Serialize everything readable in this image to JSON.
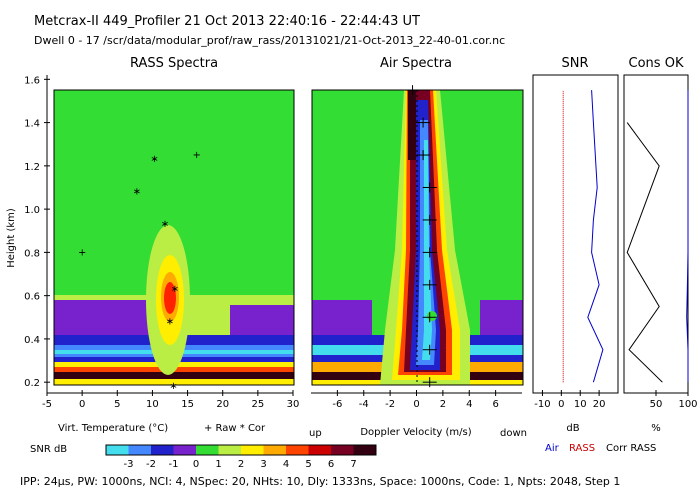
{
  "header": {
    "title": "Metcrax-II  449_Profiler  21 Oct 2013  22:40:16 - 22:44:43 UT",
    "dwell": "Dwell  0 - 17   /scr/data/modular_prof/raw_rass/20131021/21-Oct-2013_22-40-01.cor.nc"
  },
  "footer": {
    "params": "IPP: 24µs,  PW: 1000ns,  NCI: 4,  NSpec: 20,  NHts: 10,  Dly: 1333ns,  Space: 1000ns,  Code: 1,  Npts: 2048,  Step 1"
  },
  "colors": {
    "background_field": "#33dd33",
    "axis": "#000000",
    "air_line": "#0000cc",
    "rass_line": "#cc0000"
  },
  "chart_data": [
    {
      "type": "heatmap",
      "title": "RASS Spectra",
      "xlabel": "Virt. Temperature (°C)",
      "legend_text": "+ Raw   * Cor",
      "ylabel": "Height (km)",
      "xlim": [
        -5,
        30
      ],
      "ylim": [
        0.15,
        1.62
      ],
      "xticks": [
        "-5",
        "0",
        "5",
        "10",
        "15",
        "20",
        "25",
        "30"
      ],
      "yticks": [
        "0.2",
        "0.4",
        "0.6",
        "0.8",
        "1.0",
        "1.2",
        "1.4",
        "1.6"
      ],
      "cor_points": [
        {
          "x": 13.0,
          "y": 0.2
        },
        {
          "x": 12.5,
          "y": 0.5
        },
        {
          "x": 13.2,
          "y": 0.65
        },
        {
          "x": 11.8,
          "y": 0.95
        },
        {
          "x": 7.8,
          "y": 1.1
        },
        {
          "x": 10.3,
          "y": 1.25
        }
      ],
      "raw_points": [
        {
          "x": 0.0,
          "y": 0.8
        },
        {
          "x": 16.3,
          "y": 1.25
        }
      ]
    },
    {
      "type": "heatmap",
      "title": "Air Spectra",
      "xlabel": "Doppler Velocity (m/s)",
      "xlabel_left": "up",
      "xlabel_right": "down",
      "xlim": [
        -8,
        8
      ],
      "ylim": [
        0.15,
        1.62
      ],
      "xticks": [
        "-6",
        "-4",
        "-2",
        "0",
        "2",
        "4",
        "6"
      ],
      "peak_points": [
        {
          "x": 1.0,
          "y": 0.2
        },
        {
          "x": 1.0,
          "y": 0.35
        },
        {
          "x": 1.0,
          "y": 0.5
        },
        {
          "x": 1.0,
          "y": 0.65
        },
        {
          "x": 1.0,
          "y": 0.8
        },
        {
          "x": 1.0,
          "y": 0.95
        },
        {
          "x": 1.0,
          "y": 1.1
        },
        {
          "x": 0.5,
          "y": 1.25
        },
        {
          "x": 0.5,
          "y": 1.4
        },
        {
          "x": -0.3,
          "y": 1.55
        }
      ]
    },
    {
      "type": "line",
      "title": "SNR",
      "xlabel": "dB",
      "xlim": [
        -15,
        30
      ],
      "ylim": [
        0.15,
        1.62
      ],
      "xticks": [
        "-10",
        "0",
        "10",
        "20"
      ],
      "series": [
        {
          "name": "Air",
          "points": [
            [
              17,
              0.2
            ],
            [
              22,
              0.35
            ],
            [
              14,
              0.5
            ],
            [
              20,
              0.65
            ],
            [
              16,
              0.8
            ],
            [
              17,
              0.95
            ],
            [
              19,
              1.1
            ],
            [
              18,
              1.25
            ],
            [
              17,
              1.4
            ],
            [
              16,
              1.55
            ]
          ]
        },
        {
          "name": "RASS",
          "points": [
            [
              1,
              0.2
            ],
            [
              1,
              0.35
            ],
            [
              1,
              0.5
            ],
            [
              1,
              0.65
            ],
            [
              1,
              0.8
            ],
            [
              1,
              0.95
            ],
            [
              1,
              1.1
            ],
            [
              1,
              1.25
            ],
            [
              1,
              1.4
            ],
            [
              1,
              1.55
            ]
          ]
        }
      ]
    },
    {
      "type": "line",
      "title": "Cons OK",
      "xlabel": "%",
      "xlim": [
        0,
        100
      ],
      "ylim": [
        0.15,
        1.62
      ],
      "xticks": [
        "50",
        "100"
      ],
      "series": [
        {
          "name": "Air",
          "points": [
            [
              100,
              0.2
            ],
            [
              100,
              0.35
            ],
            [
              98,
              0.5
            ],
            [
              99,
              0.65
            ],
            [
              100,
              0.8
            ],
            [
              100,
              0.95
            ],
            [
              100,
              1.1
            ],
            [
              100,
              1.25
            ],
            [
              100,
              1.4
            ],
            [
              100,
              1.55
            ]
          ]
        },
        {
          "name": "Corr RASS",
          "points": [
            [
              60,
              0.2
            ],
            [
              8,
              0.35
            ],
            [
              55,
              0.55
            ],
            [
              5,
              0.8
            ],
            [
              55,
              1.2
            ],
            [
              5,
              1.4
            ]
          ]
        }
      ]
    }
  ],
  "colorbar": {
    "label": "SNR dB",
    "ticks": [
      "-3",
      "-2",
      "-1",
      "0",
      "1",
      "2",
      "3",
      "4",
      "5",
      "6",
      "7"
    ],
    "colors": [
      "#44ddee",
      "#4488ff",
      "#2222cc",
      "#7722cc",
      "#33dd33",
      "#bbee44",
      "#ffee00",
      "#ffaa00",
      "#ff4400",
      "#cc0000",
      "#770022",
      "#330011"
    ]
  },
  "legend": {
    "air": "Air",
    "rass": "RASS",
    "corr": "Corr RASS"
  }
}
